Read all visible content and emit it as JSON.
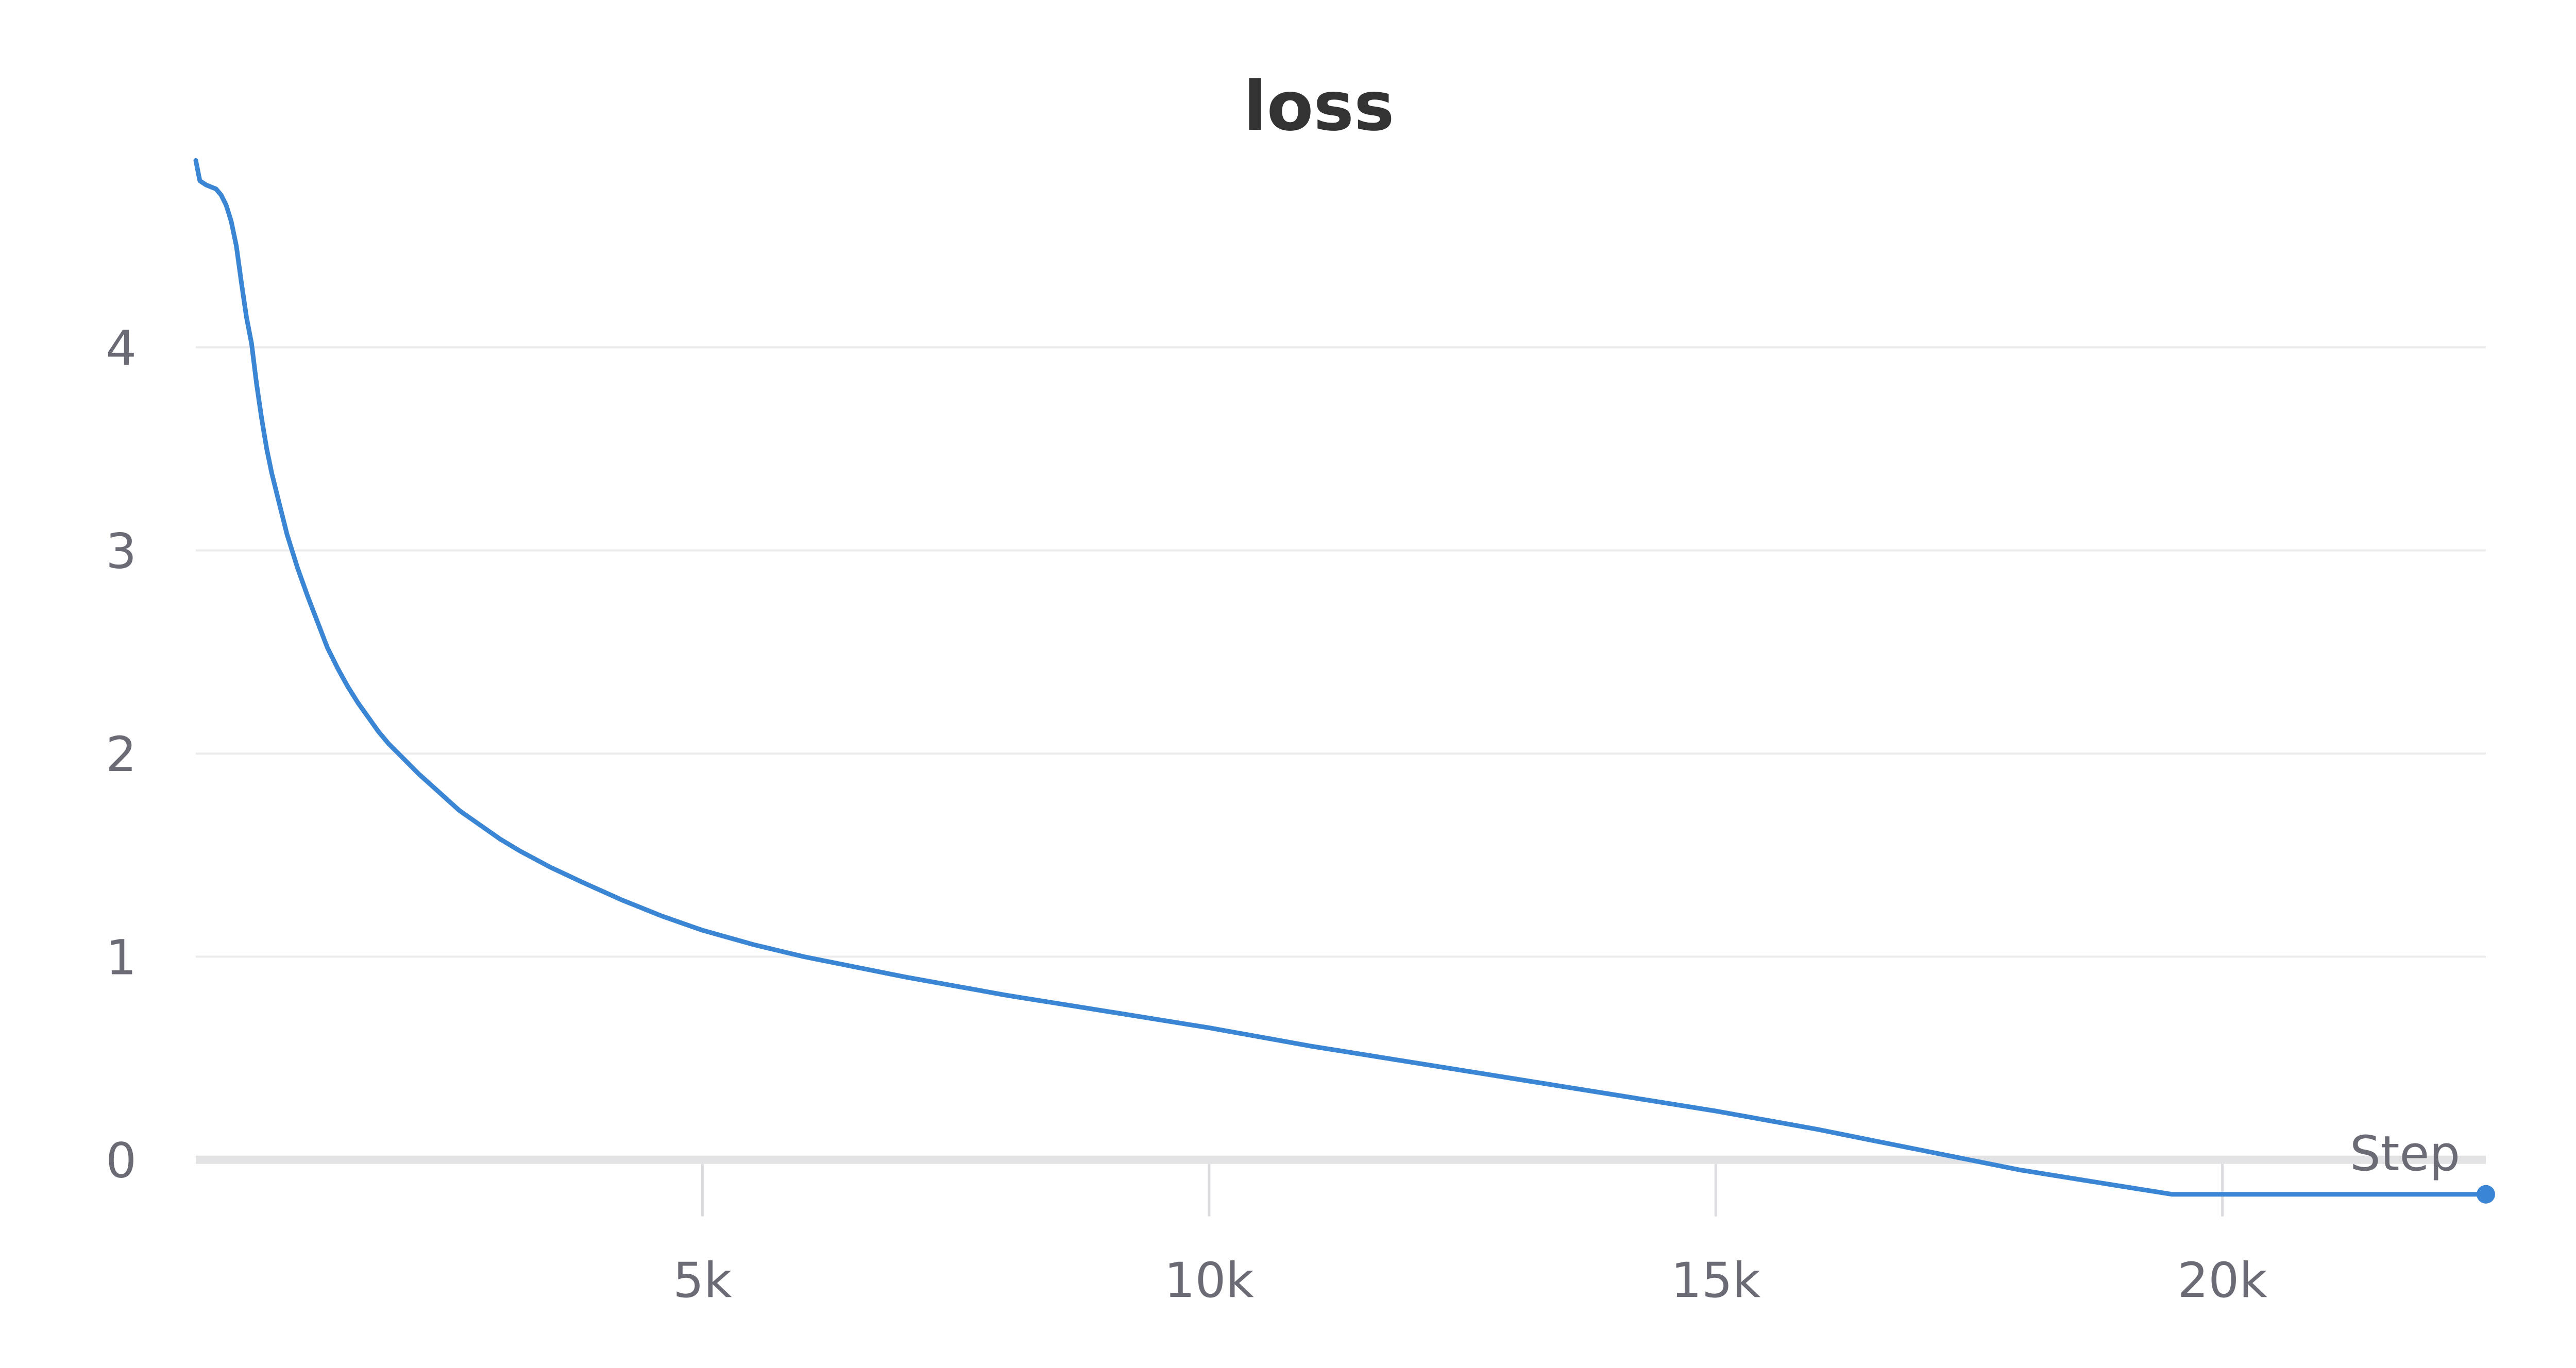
{
  "chart_data": {
    "type": "line",
    "title": "loss",
    "xlabel": "Step",
    "ylabel": "",
    "xlim": [
      0,
      22600
    ],
    "ylim": [
      -0.3,
      5
    ],
    "x_ticks": [
      {
        "value": 5000,
        "label": "5k"
      },
      {
        "value": 10000,
        "label": "10k"
      },
      {
        "value": 15000,
        "label": "15k"
      },
      {
        "value": 20000,
        "label": "20k"
      }
    ],
    "y_ticks": [
      {
        "value": 0,
        "label": "0"
      },
      {
        "value": 1,
        "label": "1"
      },
      {
        "value": 2,
        "label": "2"
      },
      {
        "value": 3,
        "label": "3"
      },
      {
        "value": 4,
        "label": "4"
      }
    ],
    "grid": "horizontal",
    "legend": "none",
    "series": [
      {
        "color": "#3a86d4",
        "x": [
          0,
          40,
          100,
          200,
          250,
          300,
          350,
          400,
          450,
          500,
          550,
          600,
          650,
          700,
          750,
          800,
          900,
          1000,
          1100,
          1200,
          1300,
          1400,
          1500,
          1600,
          1700,
          1800,
          1900,
          2000,
          2100,
          2200,
          2400,
          2600,
          2800,
          3000,
          3200,
          3500,
          3800,
          4200,
          4600,
          5000,
          5500,
          6000,
          6500,
          7000,
          8000,
          9000,
          10000,
          11000,
          12000,
          13000,
          14000,
          15000,
          16000,
          16500,
          17000,
          18000,
          19000,
          19500,
          20000,
          21000,
          22000,
          22600
        ],
        "y": [
          4.92,
          4.82,
          4.8,
          4.78,
          4.75,
          4.7,
          4.62,
          4.5,
          4.32,
          4.15,
          4.02,
          3.82,
          3.65,
          3.5,
          3.38,
          3.28,
          3.08,
          2.92,
          2.78,
          2.65,
          2.52,
          2.42,
          2.33,
          2.25,
          2.18,
          2.11,
          2.05,
          2.0,
          1.95,
          1.9,
          1.81,
          1.72,
          1.65,
          1.58,
          1.52,
          1.44,
          1.37,
          1.28,
          1.2,
          1.13,
          1.06,
          1.0,
          0.95,
          0.9,
          0.81,
          0.73,
          0.65,
          0.56,
          0.48,
          0.4,
          0.32,
          0.24,
          0.15,
          0.1,
          0.05,
          -0.05,
          -0.13,
          -0.17,
          -0.17,
          -0.17,
          -0.17,
          -0.17
        ]
      }
    ]
  }
}
